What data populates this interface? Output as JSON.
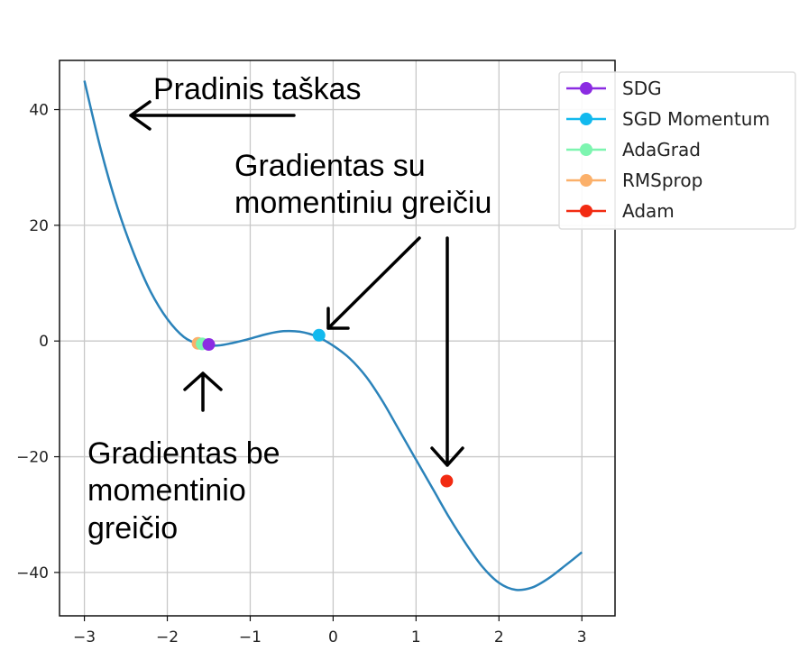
{
  "chart_data": {
    "type": "line",
    "title": "",
    "xlabel": "",
    "ylabel": "",
    "xlim": [
      -3.3,
      3.4
    ],
    "ylim": [
      -47.5,
      48.5
    ],
    "xticks": [
      -3,
      -2,
      -1,
      0,
      1,
      2,
      3
    ],
    "yticks": [
      -40,
      -20,
      0,
      20,
      40
    ],
    "grid": true,
    "legend_position": "top-right",
    "line": {
      "color": "#2b83ba",
      "x": [
        -3.0,
        -2.8,
        -2.6,
        -2.4,
        -2.2,
        -2.0,
        -1.8,
        -1.6,
        -1.4,
        -1.2,
        -1.0,
        -0.8,
        -0.6,
        -0.4,
        -0.2,
        0.0,
        0.2,
        0.4,
        0.6,
        0.8,
        1.0,
        1.2,
        1.4,
        1.6,
        1.8,
        2.0,
        2.2,
        2.4,
        2.6,
        2.8,
        3.0
      ],
      "y": [
        45,
        33,
        23,
        15,
        8.5,
        3.8,
        0.7,
        -0.6,
        -0.8,
        -0.3,
        0.4,
        1.2,
        1.7,
        1.6,
        0.8,
        -0.8,
        -3.0,
        -6.2,
        -10.5,
        -15.5,
        -20.5,
        -25.5,
        -30.5,
        -35.0,
        -39.0,
        -41.8,
        -43.0,
        -42.6,
        -41.0,
        -38.8,
        -36.5
      ]
    },
    "points": [
      {
        "name": "SDG",
        "x": -1.5,
        "y": -0.6,
        "color": "#8b2be2"
      },
      {
        "name": "SGD Momentum",
        "x": -0.17,
        "y": 1.0,
        "color": "#12b9ee"
      },
      {
        "name": "AdaGrad",
        "x": -1.58,
        "y": -0.5,
        "color": "#7df5b0"
      },
      {
        "name": "RMSprop",
        "x": -1.63,
        "y": -0.4,
        "color": "#fbb06a"
      },
      {
        "name": "Adam",
        "x": 1.37,
        "y": -24.2,
        "color": "#f22b12"
      }
    ]
  },
  "annotations": {
    "start": "Pradinis taškas",
    "with_momentum": "Gradientas su\nmomentiniu greičiu",
    "without_momentum": "Gradientas be\nmomentinio\ngreičio"
  }
}
